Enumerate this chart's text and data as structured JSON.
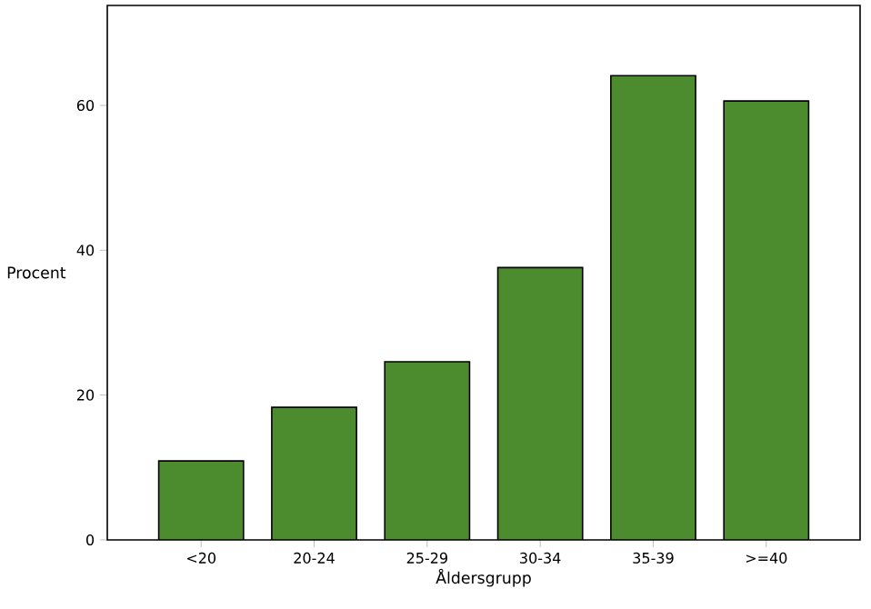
{
  "chart_data": {
    "type": "bar",
    "xlabel": "Åldersgrupp",
    "ylabel": "Procent",
    "categories": [
      "<20",
      "20-24",
      "25-29",
      "30-34",
      "35-39",
      ">=40"
    ],
    "values": [
      10.9,
      18.3,
      24.6,
      37.6,
      64.1,
      60.6
    ],
    "color": "#4d8c2e",
    "ylim": [
      0,
      73.8
    ],
    "yticks": [
      0,
      20,
      40,
      60
    ],
    "grid": false
  }
}
